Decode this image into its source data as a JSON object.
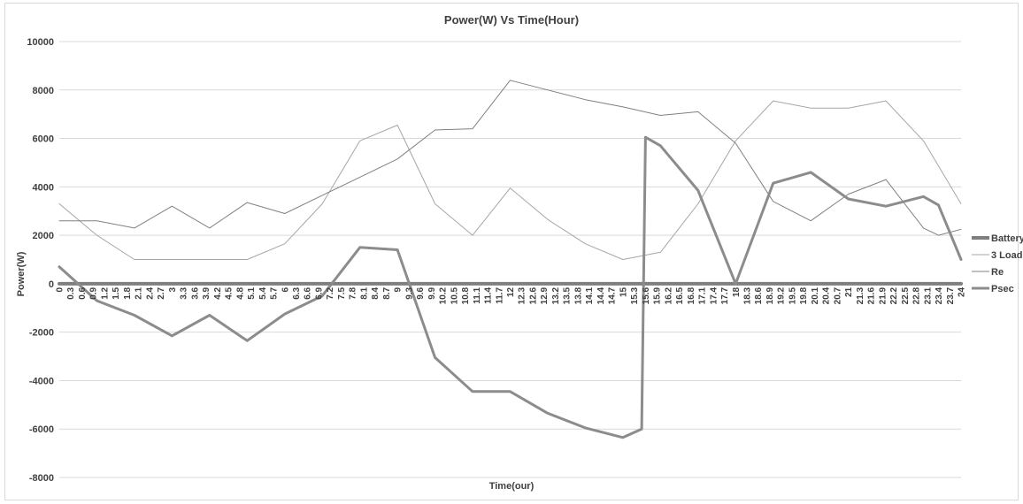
{
  "chart_data": {
    "type": "line",
    "title": "Power(W) Vs Time(Hour)",
    "xlabel": "Time(our)",
    "ylabel": "Power(W)",
    "ylim": [
      -8000,
      10000
    ],
    "yticks": [
      "-8000",
      "-6000",
      "-4000",
      "-2000",
      "0",
      "2000",
      "4000",
      "6000",
      "8000",
      "10000"
    ],
    "grid": true,
    "legend_position": "right",
    "x": [
      "0",
      "0.3",
      "0.6",
      "0.9",
      "1.2",
      "1.5",
      "1.8",
      "2.1",
      "2.4",
      "2.7",
      "3",
      "3.3",
      "3.6",
      "3.9",
      "4.2",
      "4.5",
      "4.8",
      "5.1",
      "5.4",
      "5.7",
      "6",
      "6.3",
      "6.6",
      "6.9",
      "7.2",
      "7.5",
      "7.8",
      "8.1",
      "8.4",
      "8.7",
      "9",
      "9.3",
      "9.6",
      "9.9",
      "10.2",
      "10.5",
      "10.8",
      "11.1",
      "11.4",
      "11.7",
      "12",
      "12.3",
      "12.6",
      "12.9",
      "13.2",
      "13.5",
      "13.8",
      "14.1",
      "14.4",
      "14.7",
      "15",
      "15.3",
      "15.6",
      "15.9",
      "16.2",
      "16.5",
      "16.8",
      "17.1",
      "17.4",
      "17.7",
      "18",
      "18.3",
      "18.6",
      "18.9",
      "19.2",
      "19.5",
      "19.8",
      "20.1",
      "20.4",
      "20.7",
      "21",
      "21.3",
      "21.6",
      "21.9",
      "22.2",
      "22.5",
      "22.8",
      "23.1",
      "23.4",
      "23.7",
      "24"
    ],
    "xtick_labels_visible": [
      "0",
      "0.3",
      "0.6",
      "0.9",
      "1.2",
      "1.5",
      "1.8",
      "2.1",
      "2.4",
      "2.7",
      "3",
      "3.3",
      "3.6",
      "3.9",
      "4.2",
      "4.5",
      "4.8",
      "5.1",
      "5.4",
      "5.7",
      "6",
      "6.3",
      "6.6",
      "6.9",
      "7.2",
      "7.5",
      "7.8",
      "8.1",
      "8.4",
      "8.7",
      "9",
      "9.3",
      "9.6",
      "9.9",
      "10.2",
      "10.5",
      "10.8",
      "11.1",
      "11.4",
      "11.7",
      "12",
      "12.3",
      "12.6",
      "12.9",
      "13.2",
      "13.5",
      "13.8",
      "14.1",
      "14.4",
      "14.7",
      "15",
      "15.3",
      "15.6",
      "15.9",
      "16.2",
      "16.5",
      "16.8",
      "17.1",
      "17.4",
      "17.7",
      "18",
      "18.3",
      "18.6",
      "18.9",
      "19.2",
      "19.5",
      "19.8",
      "20.1",
      "20.4",
      "20.7",
      "21",
      "21.3",
      "21.6",
      "21.9",
      "22.2",
      "22.5",
      "22.8",
      "23.1",
      "23.4",
      "23.7",
      "24"
    ],
    "series": [
      {
        "name": "Battery",
        "color": "#7f7f7f",
        "width": 4,
        "points": [
          [
            0,
            0
          ],
          [
            24,
            0
          ]
        ]
      },
      {
        "name": "3 Load",
        "color": "#a6a6a6",
        "width": 1,
        "points": [
          [
            0,
            3300
          ],
          [
            1,
            2000
          ],
          [
            2,
            1000
          ],
          [
            3,
            1000
          ],
          [
            4,
            1000
          ],
          [
            5,
            1000
          ],
          [
            6,
            1650
          ],
          [
            7,
            3300
          ],
          [
            8,
            5900
          ],
          [
            9,
            6550
          ],
          [
            10,
            3300
          ],
          [
            11,
            2000
          ],
          [
            12,
            3950
          ],
          [
            13,
            2650
          ],
          [
            14,
            1650
          ],
          [
            15,
            1000
          ],
          [
            16,
            1300
          ],
          [
            17,
            3300
          ],
          [
            18,
            5900
          ],
          [
            19,
            7550
          ],
          [
            20,
            7250
          ],
          [
            21,
            7250
          ],
          [
            22,
            7550
          ],
          [
            23,
            5900
          ],
          [
            24,
            3300
          ]
        ]
      },
      {
        "name": "Re",
        "color": "#808080",
        "width": 1,
        "points": [
          [
            0,
            2600
          ],
          [
            1,
            2600
          ],
          [
            2,
            2300
          ],
          [
            3,
            3200
          ],
          [
            4,
            2300
          ],
          [
            5,
            3350
          ],
          [
            6,
            2900
          ],
          [
            7,
            3650
          ],
          [
            8,
            4400
          ],
          [
            9,
            5150
          ],
          [
            10,
            6350
          ],
          [
            11,
            6400
          ],
          [
            12,
            8400
          ],
          [
            13,
            8000
          ],
          [
            14,
            7600
          ],
          [
            15,
            7300
          ],
          [
            16,
            6950
          ],
          [
            17,
            7100
          ],
          [
            18,
            5800
          ],
          [
            19,
            3400
          ],
          [
            20,
            2600
          ],
          [
            21,
            3700
          ],
          [
            22,
            4300
          ],
          [
            23,
            2300
          ],
          [
            23.4,
            2000
          ],
          [
            24,
            2250
          ]
        ]
      },
      {
        "name": "Psec",
        "color": "#8c8c8c",
        "width": 3,
        "points": [
          [
            0,
            700
          ],
          [
            1,
            -700
          ],
          [
            2,
            -1300
          ],
          [
            3,
            -2150
          ],
          [
            4,
            -1300
          ],
          [
            5,
            -2350
          ],
          [
            6,
            -1250
          ],
          [
            7,
            -500
          ],
          [
            8,
            1500
          ],
          [
            9,
            1400
          ],
          [
            10,
            -3050
          ],
          [
            11,
            -4450
          ],
          [
            12,
            -4450
          ],
          [
            13,
            -5350
          ],
          [
            14,
            -5950
          ],
          [
            15,
            -6350
          ],
          [
            15.5,
            -6000
          ],
          [
            15.6,
            6050
          ],
          [
            16,
            5700
          ],
          [
            17,
            3850
          ],
          [
            18,
            0
          ],
          [
            19,
            4150
          ],
          [
            20,
            4600
          ],
          [
            21,
            3500
          ],
          [
            22,
            3200
          ],
          [
            23,
            3600
          ],
          [
            23.4,
            3250
          ],
          [
            24,
            1000
          ]
        ]
      }
    ]
  }
}
